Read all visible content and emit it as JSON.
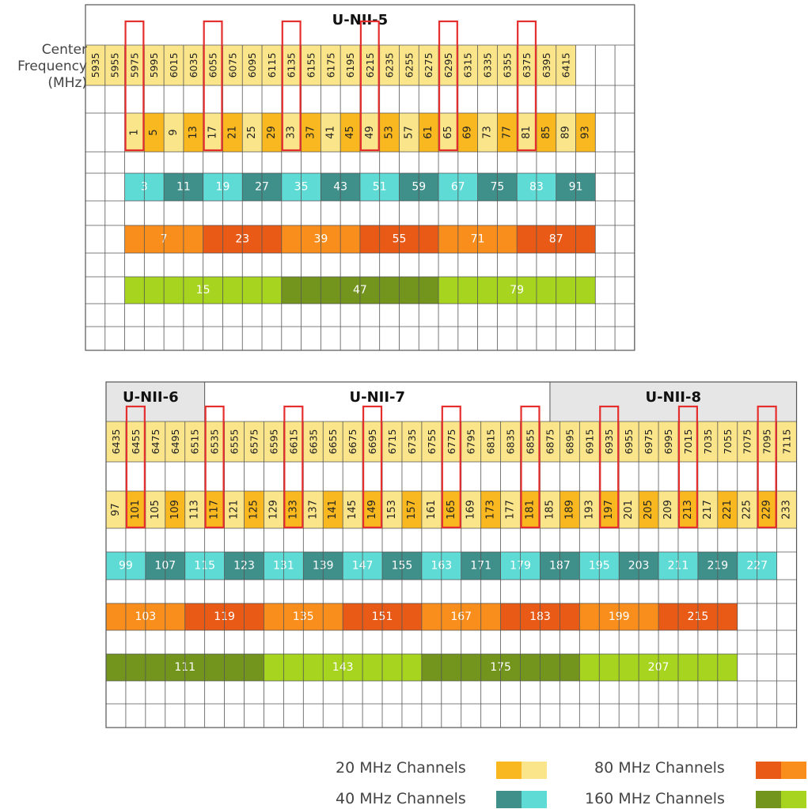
{
  "top_panel": {
    "band_label": "U-NII-5",
    "freq_axis_label": [
      "Center",
      "Frequency",
      "(MHz)"
    ],
    "frequencies": [
      "5935",
      "5955",
      "5975",
      "5995",
      "6015",
      "6035",
      "6055",
      "6075",
      "6095",
      "6115",
      "6135",
      "6155",
      "6175",
      "6195",
      "6215",
      "6235",
      "6255",
      "6275",
      "6295",
      "6315",
      "6335",
      "6355",
      "6375",
      "6395",
      "6415"
    ],
    "ch20": [
      "1",
      "5",
      "9",
      "13",
      "17",
      "21",
      "25",
      "29",
      "33",
      "37",
      "41",
      "45",
      "49",
      "53",
      "57",
      "61",
      "65",
      "69",
      "73",
      "77",
      "81",
      "85",
      "89",
      "93"
    ],
    "ch40": [
      "3",
      "11",
      "19",
      "27",
      "35",
      "43",
      "51",
      "59",
      "67",
      "75",
      "83",
      "91"
    ],
    "ch80": [
      "7",
      "23",
      "39",
      "55",
      "71",
      "87"
    ],
    "ch160": [
      "15",
      "47",
      "79"
    ],
    "highlighted_frequencies": [
      "5975",
      "6055",
      "6135",
      "6215",
      "6295",
      "6375"
    ]
  },
  "bottom_panel": {
    "band_labels": [
      "U-NII-6",
      "U-NII-7",
      "U-NII-8"
    ],
    "frequencies": [
      "6435",
      "6455",
      "6475",
      "6495",
      "6515",
      "6535",
      "6555",
      "6575",
      "6595",
      "6615",
      "6635",
      "6655",
      "6675",
      "6695",
      "6715",
      "6735",
      "6755",
      "6775",
      "6795",
      "6815",
      "6835",
      "6855",
      "6875",
      "6895",
      "6915",
      "6935",
      "6955",
      "6975",
      "6995",
      "7015",
      "7035",
      "7055",
      "7075",
      "7095",
      "7115"
    ],
    "ch20": [
      "97",
      "101",
      "105",
      "109",
      "113",
      "117",
      "121",
      "125",
      "129",
      "133",
      "137",
      "141",
      "145",
      "149",
      "153",
      "157",
      "161",
      "165",
      "169",
      "173",
      "177",
      "181",
      "185",
      "189",
      "193",
      "197",
      "201",
      "205",
      "209",
      "213",
      "217",
      "221",
      "225",
      "229",
      "233"
    ],
    "ch40": [
      "99",
      "107",
      "115",
      "123",
      "131",
      "139",
      "147",
      "155",
      "163",
      "171",
      "179",
      "187",
      "195",
      "203",
      "211",
      "219",
      "227"
    ],
    "ch80": [
      "103",
      "119",
      "135",
      "151",
      "167",
      "183",
      "199",
      "215"
    ],
    "ch160": [
      "111",
      "143",
      "175",
      "207"
    ],
    "highlighted_frequencies": [
      "6455",
      "6535",
      "6615",
      "6695",
      "6775",
      "6855",
      "6935",
      "7015",
      "7095"
    ]
  },
  "legend": {
    "ch20_label": "20 MHz Channels",
    "ch40_label": "40 MHz Channels",
    "ch80_label": "80 MHz Channels",
    "ch160_label": "160 MHz Channels"
  },
  "colors": {
    "ch20_dark": "#f9b81f",
    "ch20_light": "#fbe58a",
    "ch40_dark": "#3f8f8b",
    "ch40_light": "#5fdbd6",
    "ch80_dark": "#e95a17",
    "ch80_light": "#f98e1d",
    "ch160_dark": "#73951d",
    "ch160_light": "#a6d41f",
    "freq_cell": "#fbe58a",
    "highlight_box": "#e52e2e",
    "grid_line": "#555555",
    "band_shade": "#e6e6e6"
  }
}
